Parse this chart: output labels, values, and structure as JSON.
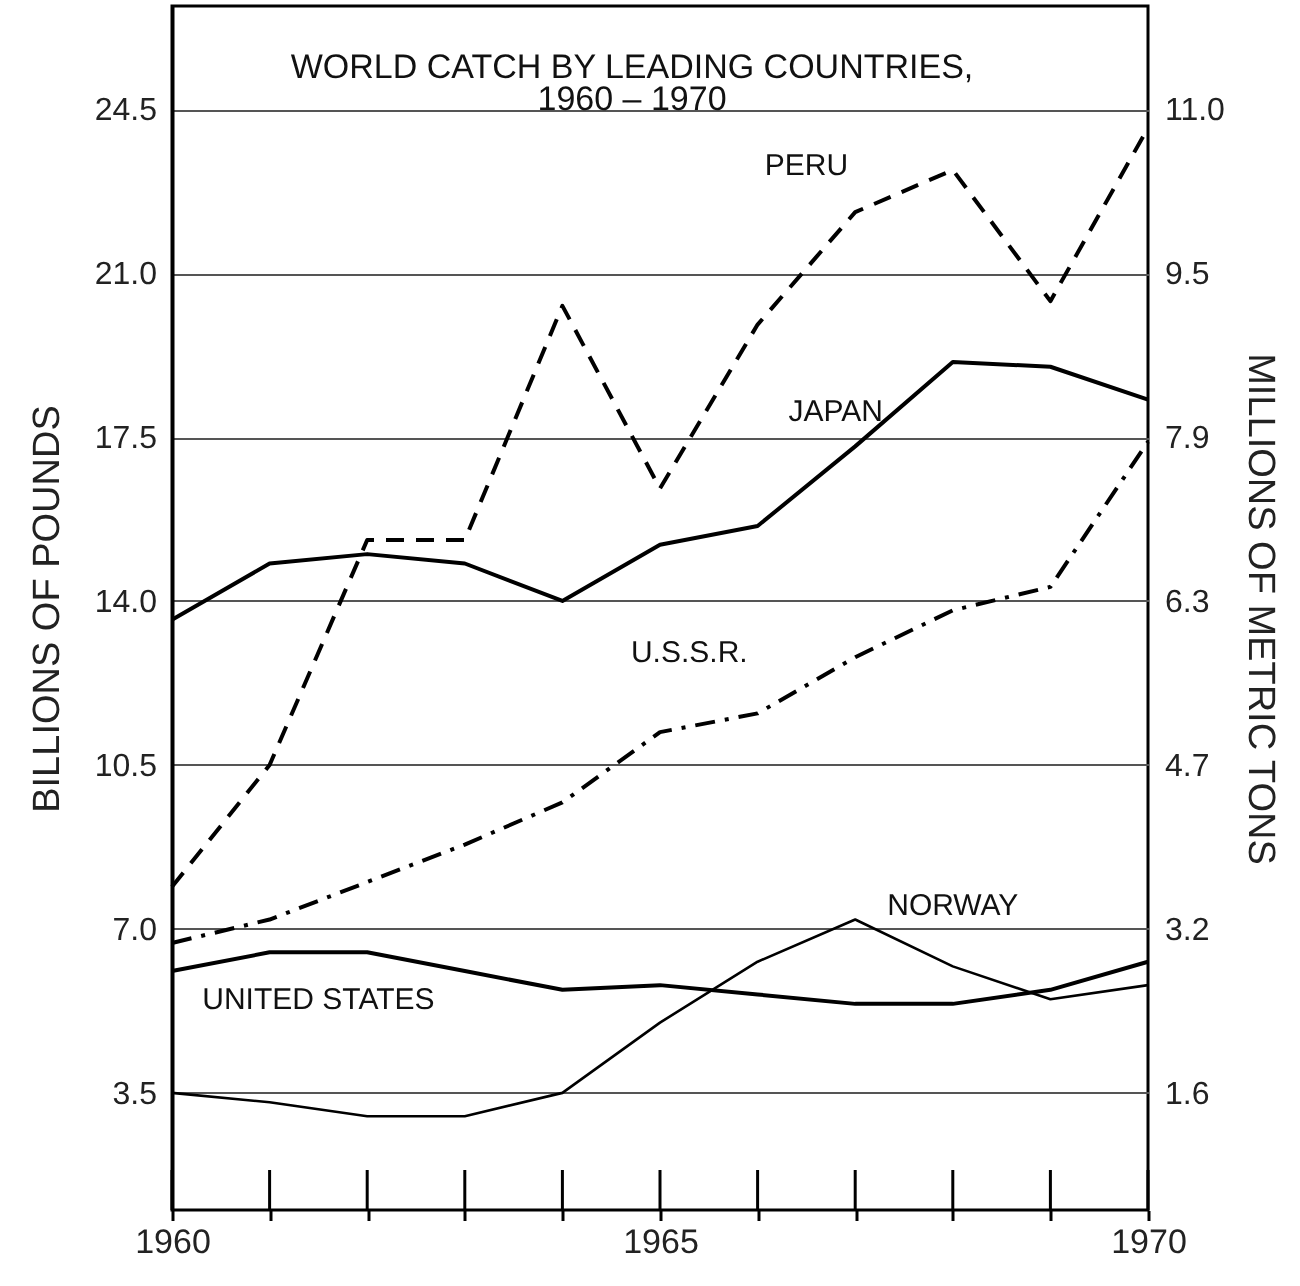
{
  "chart_data": {
    "type": "line",
    "title": "WORLD CATCH BY LEADING COUNTRIES,\n1960 – 1970",
    "ylabel": "BILLIONS OF POUNDS",
    "y2label": "MILLIONS OF METRIC TONS",
    "x": [
      1960,
      1961,
      1962,
      1963,
      1964,
      1965,
      1966,
      1967,
      1968,
      1969,
      1970
    ],
    "series": [
      {
        "name": "PERU",
        "color": "#000000",
        "line_style": "dashed",
        "values": [
          7.9,
          10.5,
          15.3,
          15.3,
          20.3,
          16.4,
          19.9,
          22.3,
          23.2,
          20.4,
          24.1
        ]
      },
      {
        "name": "JAPAN",
        "color": "#000000",
        "line_style": "solid",
        "values": [
          13.6,
          14.8,
          15.0,
          14.8,
          14.0,
          15.2,
          15.6,
          17.3,
          19.1,
          19.0,
          18.3
        ]
      },
      {
        "name": "U.S.S.R.",
        "color": "#000000",
        "line_style": "dashdot",
        "values": [
          6.7,
          7.2,
          8.0,
          8.8,
          9.7,
          11.2,
          11.6,
          12.8,
          13.8,
          14.3,
          17.4
        ]
      },
      {
        "name": "NORWAY",
        "color": "#000000",
        "line_style": "solid",
        "values": [
          3.5,
          3.3,
          3.0,
          3.0,
          3.5,
          5.0,
          6.3,
          7.2,
          6.2,
          5.5,
          5.8
        ]
      },
      {
        "name": "UNITED STATES",
        "color": "#000000",
        "line_style": "solid",
        "values": [
          6.1,
          6.5,
          6.5,
          6.1,
          5.7,
          5.8,
          5.6,
          5.4,
          5.4,
          5.7,
          6.3
        ]
      }
    ],
    "xlim": [
      1960,
      1970
    ],
    "xticks": [
      1960,
      {
        "value": 1961,
        "label": null
      },
      {
        "value": 1962,
        "label": null
      },
      {
        "value": 1963,
        "label": null
      },
      {
        "value": 1964,
        "label": null
      },
      1965,
      {
        "value": 1966,
        "label": null
      },
      {
        "value": 1967,
        "label": null
      },
      {
        "value": 1968,
        "label": null
      },
      {
        "value": 1969,
        "label": null
      },
      1970
    ],
    "ylim": [
      1.0,
      26.7
    ],
    "yticks": [
      {
        "value": 3.5,
        "label": "3.5"
      },
      {
        "value": 7.0,
        "label": "7.0"
      },
      {
        "value": 10.5,
        "label": "10.5"
      },
      {
        "value": 14.0,
        "label": "14.0"
      },
      {
        "value": 17.5,
        "label": "17.5"
      },
      {
        "value": 21.0,
        "label": "21.0"
      },
      {
        "value": 24.5,
        "label": "24.5"
      }
    ],
    "y2lim": [
      0.46,
      12.025
    ],
    "y2ticks": [
      {
        "value": 1.585,
        "label": "1.6"
      },
      {
        "value": 3.16,
        "label": "3.2"
      },
      {
        "value": 4.735,
        "label": "4.7"
      },
      {
        "value": 6.31,
        "label": "6.3"
      },
      {
        "value": 7.885,
        "label": "7.9"
      },
      {
        "value": 9.46,
        "label": "9.5"
      },
      {
        "value": 11.035,
        "label": "11.0"
      }
    ],
    "grid": "y"
  }
}
